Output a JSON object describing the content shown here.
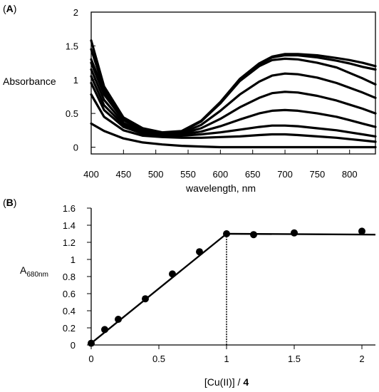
{
  "chart_data": [
    {
      "panel": "A",
      "panel_open": "(",
      "panel_close": ")",
      "type": "line",
      "xlabel": "wavelength, nm",
      "ylabel": "Absorbance",
      "xlim": [
        400,
        840
      ],
      "ylim": [
        -0.1,
        2.0
      ],
      "xticks": [
        "400",
        "450",
        "500",
        "550",
        "600",
        "650",
        "700",
        "750",
        "800"
      ],
      "yticks": [
        "0",
        "0.5",
        "1",
        "1.5",
        "2"
      ],
      "grid": false,
      "series": [
        {
          "x": [
            400,
            420,
            450,
            480,
            510,
            540,
            570,
            600,
            630,
            660,
            680,
            700,
            720,
            750,
            780,
            800,
            820,
            840
          ],
          "values": [
            0.35,
            0.24,
            0.13,
            0.07,
            0.04,
            0.02,
            0.01,
            0.0,
            0.0,
            0.0,
            0.0,
            0.0,
            0.0,
            0.0,
            0.0,
            0.0,
            0.0,
            0.0
          ]
        },
        {
          "x": [
            400,
            420,
            450,
            480,
            510,
            540,
            570,
            600,
            630,
            660,
            680,
            700,
            720,
            750,
            780,
            800,
            820,
            840
          ],
          "values": [
            0.78,
            0.45,
            0.25,
            0.17,
            0.15,
            0.14,
            0.14,
            0.15,
            0.16,
            0.18,
            0.19,
            0.19,
            0.18,
            0.16,
            0.14,
            0.12,
            0.1,
            0.08
          ]
        },
        {
          "x": [
            400,
            420,
            450,
            480,
            510,
            540,
            570,
            600,
            630,
            660,
            680,
            700,
            720,
            750,
            780,
            800,
            820,
            840
          ],
          "values": [
            0.95,
            0.55,
            0.3,
            0.2,
            0.17,
            0.17,
            0.19,
            0.22,
            0.26,
            0.3,
            0.32,
            0.32,
            0.31,
            0.28,
            0.25,
            0.22,
            0.19,
            0.16
          ]
        },
        {
          "x": [
            400,
            420,
            450,
            480,
            510,
            540,
            570,
            600,
            630,
            660,
            680,
            700,
            720,
            750,
            780,
            800,
            820,
            840
          ],
          "values": [
            1.05,
            0.62,
            0.33,
            0.22,
            0.18,
            0.19,
            0.23,
            0.31,
            0.41,
            0.5,
            0.54,
            0.55,
            0.54,
            0.5,
            0.45,
            0.4,
            0.35,
            0.3
          ]
        },
        {
          "x": [
            400,
            420,
            450,
            480,
            510,
            540,
            570,
            600,
            630,
            660,
            680,
            700,
            720,
            750,
            780,
            800,
            820,
            840
          ],
          "values": [
            1.15,
            0.7,
            0.36,
            0.23,
            0.19,
            0.2,
            0.28,
            0.42,
            0.59,
            0.73,
            0.8,
            0.82,
            0.81,
            0.76,
            0.69,
            0.63,
            0.57,
            0.5
          ]
        },
        {
          "x": [
            400,
            420,
            450,
            480,
            510,
            540,
            570,
            600,
            630,
            660,
            680,
            700,
            720,
            750,
            780,
            800,
            820,
            840
          ],
          "values": [
            1.25,
            0.78,
            0.4,
            0.25,
            0.2,
            0.21,
            0.33,
            0.54,
            0.78,
            0.97,
            1.06,
            1.09,
            1.08,
            1.03,
            0.95,
            0.88,
            0.81,
            0.73
          ]
        },
        {
          "x": [
            400,
            420,
            450,
            480,
            510,
            540,
            570,
            600,
            630,
            660,
            680,
            700,
            720,
            750,
            780,
            800,
            820,
            840
          ],
          "values": [
            1.3,
            0.82,
            0.42,
            0.27,
            0.21,
            0.23,
            0.38,
            0.65,
            0.98,
            1.2,
            1.29,
            1.31,
            1.3,
            1.25,
            1.18,
            1.1,
            1.02,
            0.93
          ]
        },
        {
          "x": [
            400,
            420,
            450,
            480,
            510,
            540,
            570,
            600,
            630,
            660,
            680,
            700,
            720,
            750,
            780,
            800,
            820,
            840
          ],
          "values": [
            1.45,
            0.86,
            0.43,
            0.27,
            0.21,
            0.23,
            0.38,
            0.66,
            1.0,
            1.23,
            1.33,
            1.36,
            1.36,
            1.33,
            1.28,
            1.24,
            1.19,
            1.15
          ]
        },
        {
          "x": [
            400,
            420,
            450,
            480,
            510,
            540,
            570,
            600,
            630,
            660,
            680,
            700,
            720,
            750,
            780,
            800,
            820,
            840
          ],
          "values": [
            1.58,
            0.9,
            0.44,
            0.28,
            0.22,
            0.24,
            0.39,
            0.67,
            1.01,
            1.24,
            1.34,
            1.38,
            1.38,
            1.36,
            1.32,
            1.29,
            1.25,
            1.2
          ]
        }
      ]
    },
    {
      "panel": "B",
      "panel_open": "(",
      "panel_close": ")",
      "type": "scatter",
      "xlabel": "[Cu(II)] / ",
      "xlabel_bold": "4",
      "ylabel": "A",
      "ylabel_sub": "680nm",
      "xlim": [
        0,
        2.1
      ],
      "ylim": [
        0,
        1.6
      ],
      "xticks": [
        "0",
        "0.5",
        "1",
        "1.5",
        "2"
      ],
      "yticks": [
        "0",
        "0.2",
        "0.4",
        "0.6",
        "0.8",
        "1",
        "1.2",
        "1.4",
        "1.6"
      ],
      "grid": false,
      "points": {
        "x": [
          0,
          0.1,
          0.2,
          0.4,
          0.6,
          0.8,
          1.0,
          1.2,
          1.5,
          2.0
        ],
        "y": [
          0.02,
          0.18,
          0.3,
          0.54,
          0.83,
          1.09,
          1.3,
          1.29,
          1.31,
          1.33
        ]
      },
      "fit_lines": [
        {
          "x": [
            0,
            1.0
          ],
          "y": [
            0.02,
            1.3
          ]
        },
        {
          "x": [
            1.0,
            2.1
          ],
          "y": [
            1.3,
            1.29
          ]
        }
      ],
      "marker": {
        "x": 1.0,
        "y": [
          0,
          1.3
        ]
      }
    }
  ]
}
